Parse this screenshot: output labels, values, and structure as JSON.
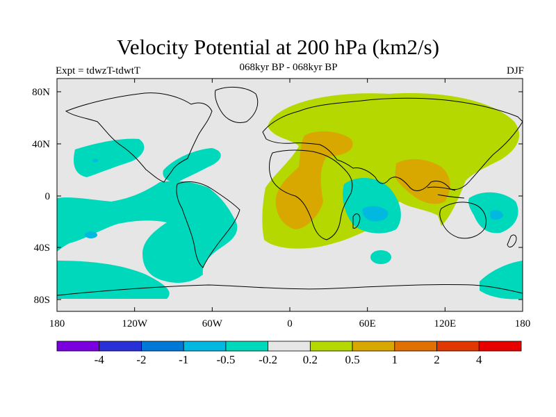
{
  "title": "Velocity Potential at 200 hPa (km2/s)",
  "subtitle": "068kyr BP - 068kyr BP",
  "experiment": "Expt = tdwzT-tdwtT",
  "season": "DJF",
  "map": {
    "lon_labels": [
      "180",
      "120W",
      "60W",
      "0",
      "60E",
      "120E",
      "180"
    ],
    "lat_labels": [
      "80N",
      "40N",
      "0",
      "40S",
      "80S"
    ],
    "colors": {
      "ocean_land_bg": "#e6e6e6",
      "neg_light": "#00d8bc",
      "neg_mid": "#00b8e0",
      "neg_strong": "#4f74e8",
      "pos_light": "#b4d800",
      "pos_mid": "#d8a800",
      "pos_strong": "#e07000"
    }
  },
  "colorbar": {
    "colors": [
      "#7a00e0",
      "#2a30d8",
      "#0078d8",
      "#00b8e0",
      "#00d8bc",
      "#e6e6e6",
      "#b4d800",
      "#d8a800",
      "#e07000",
      "#e03800",
      "#e80000"
    ],
    "labels": [
      "-4",
      "-2",
      "-1",
      "-0.5",
      "-0.2",
      "0.2",
      "0.5",
      "1",
      "2",
      "4"
    ]
  }
}
